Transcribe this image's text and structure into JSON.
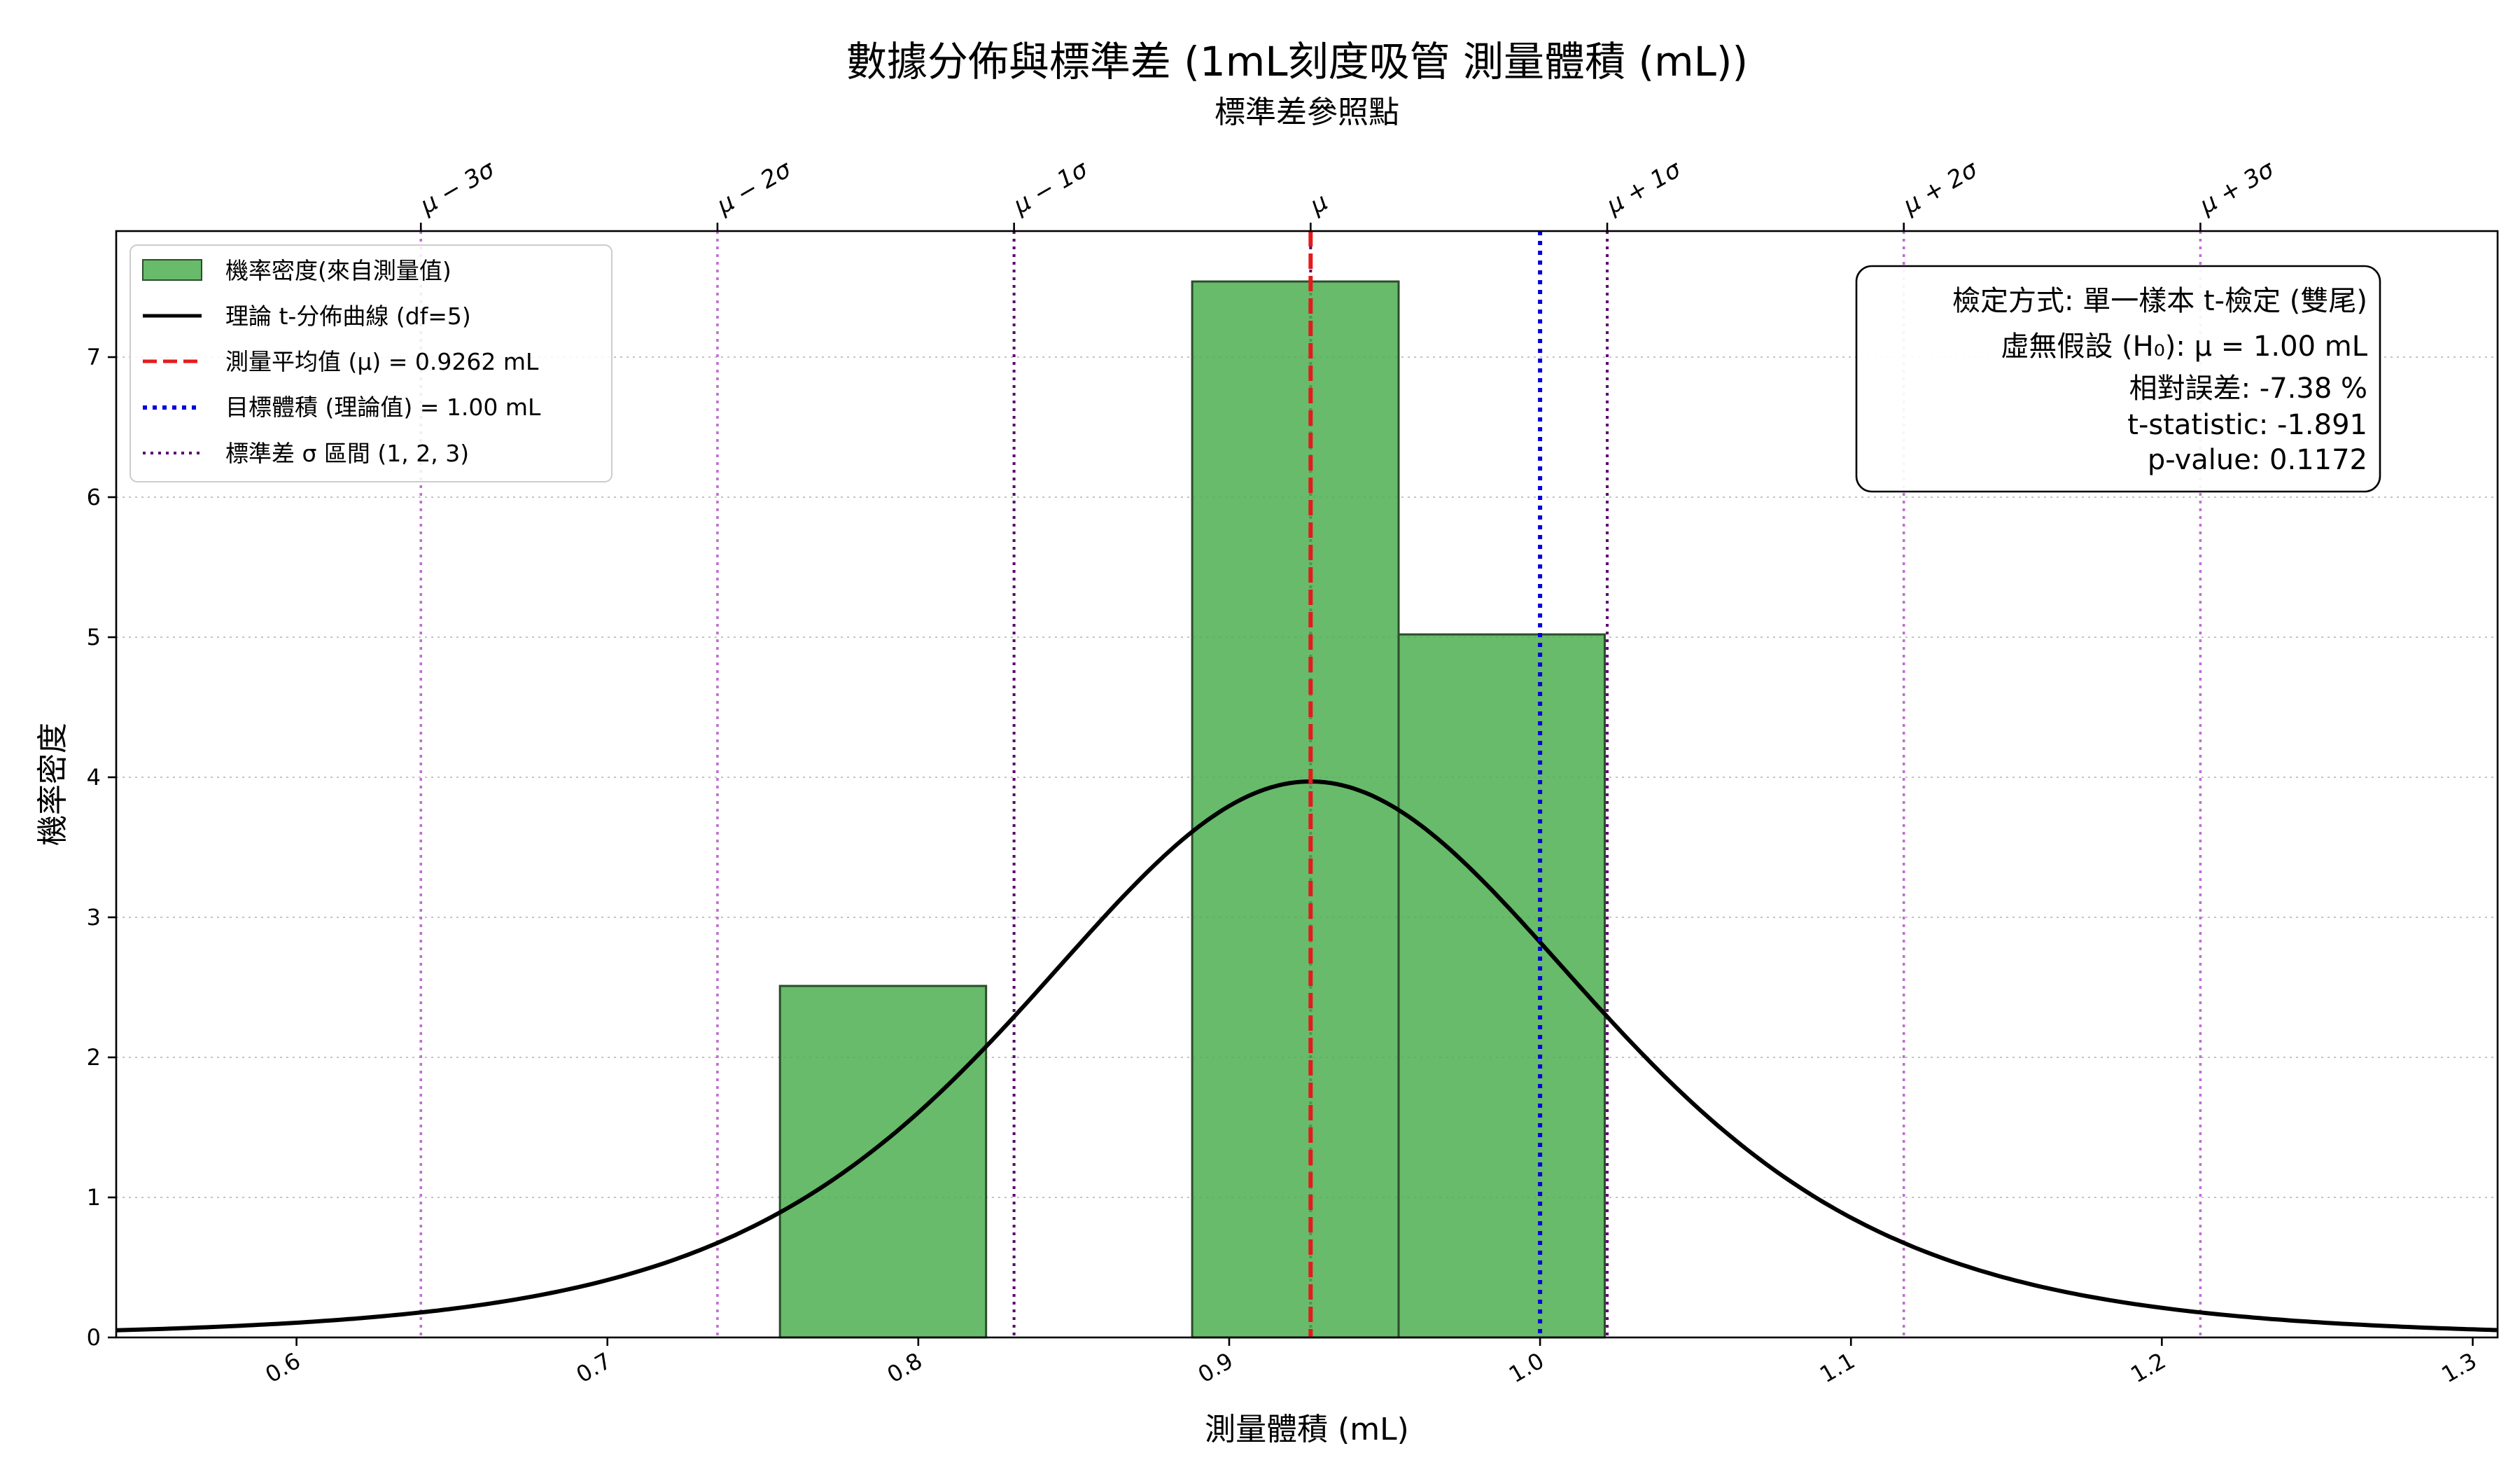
{
  "chart_data": {
    "type": "bar",
    "title": "數據分佈與標準差 (1mL刻度吸管 測量體積 (mL))",
    "top_axis_label": "標準差參照點",
    "xlabel": "測量體積 (mL)",
    "ylabel": "機率密度",
    "xlim": [
      0.542,
      1.308
    ],
    "ylim": [
      0,
      7.9
    ],
    "x_ticks": [
      0.6,
      0.7,
      0.8,
      0.9,
      1.0,
      1.1,
      1.2,
      1.3
    ],
    "x_tick_labels": [
      "0.6",
      "0.7",
      "0.8",
      "0.9",
      "1.0",
      "1.1",
      "1.2",
      "1.3"
    ],
    "y_ticks": [
      0,
      1,
      2,
      3,
      4,
      5,
      6,
      7
    ],
    "y_tick_labels": [
      "0",
      "1",
      "2",
      "3",
      "4",
      "5",
      "6",
      "7"
    ],
    "grid": "y-dotted",
    "legend_position": "top-left",
    "histogram": {
      "name": "機率密度(來自測量值)",
      "color": "#4caf50",
      "bins": [
        {
          "x0": 0.7555,
          "x1": 0.8218,
          "density": 2.51
        },
        {
          "x0": 0.8218,
          "x1": 0.8881,
          "density": 0
        },
        {
          "x0": 0.8881,
          "x1": 0.9545,
          "density": 7.54
        },
        {
          "x0": 0.9545,
          "x1": 1.0208,
          "density": 5.02
        }
      ]
    },
    "t_curve": {
      "name": "理論 t-分佈曲線 (df=5)",
      "df": 5,
      "mean": 0.9262,
      "scale": 0.0951,
      "peak_density": 3.97,
      "color": "#000000"
    },
    "mean_line": {
      "name": "測量平均值 (μ) = 0.9262 mL",
      "x": 0.9262,
      "color": "#e41a1c"
    },
    "target_line": {
      "name": "目標體積 (理論值) = 1.00 mL",
      "x": 1.0,
      "color": "#0000dd"
    },
    "sigma_lines": {
      "name": "標準差 σ 區間 (1, 2, 3)",
      "sigma": 0.0954,
      "color_inner": "#5c0070",
      "color_outer": "#c070d0",
      "items": [
        {
          "k": -3,
          "x": 0.64,
          "label": "μ − 3σ"
        },
        {
          "k": -2,
          "x": 0.7354,
          "label": "μ − 2σ"
        },
        {
          "k": -1,
          "x": 0.8308,
          "label": "μ − 1σ"
        },
        {
          "k": 0,
          "x": 0.9262,
          "label": "μ"
        },
        {
          "k": 1,
          "x": 1.0216,
          "label": "μ + 1σ"
        },
        {
          "k": 2,
          "x": 1.117,
          "label": "μ + 2σ"
        },
        {
          "k": 3,
          "x": 1.2124,
          "label": "μ + 3σ"
        }
      ]
    },
    "stats_box": {
      "lines": [
        "檢定方式: 單一樣本 t-檢定 (雙尾)",
        "虛無假設 (H₀): μ = 1.00 mL",
        "相對誤差: -7.38 %",
        "t-statistic: -1.891",
        "p-value: 0.1172"
      ]
    }
  }
}
